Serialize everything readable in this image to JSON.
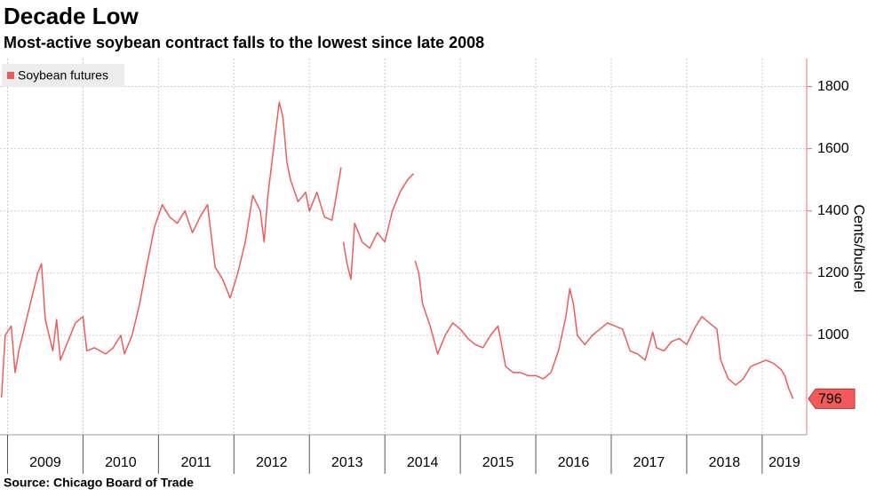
{
  "chart_data": {
    "type": "line",
    "title": "Decade Low",
    "subtitle": "Most-active soybean contract falls to the lowest since late 2008",
    "source": "Source: Chicago Board of Trade",
    "y_axis_label": "Cents/bushel",
    "legend_position": "top-left",
    "grid": true,
    "xlim": [
      2008.9,
      2019.59
    ],
    "xticks": [
      2009,
      2010,
      2011,
      2012,
      2013,
      2014,
      2015,
      2016,
      2017,
      2018,
      2019
    ],
    "ylim": [
      680,
      1890
    ],
    "yticks": [
      1000,
      1200,
      1400,
      1600,
      1800
    ],
    "x": [
      2008.92,
      2008.97,
      2009.05,
      2009.1,
      2009.15,
      2009.2,
      2009.3,
      2009.4,
      2009.45,
      2009.5,
      2009.55,
      2009.6,
      2009.65,
      2009.7,
      2009.8,
      2009.9,
      2010.0,
      2010.05,
      2010.15,
      2010.3,
      2010.4,
      2010.5,
      2010.55,
      2010.65,
      2010.75,
      2010.85,
      2010.95,
      2011.05,
      2011.15,
      2011.25,
      2011.35,
      2011.45,
      2011.55,
      2011.65,
      2011.75,
      2011.85,
      2011.95,
      2012.05,
      2012.15,
      2012.25,
      2012.35,
      2012.4,
      2012.45,
      2012.5,
      2012.55,
      2012.6,
      2012.65,
      2012.7,
      2012.75,
      2012.85,
      2012.95,
      2013.0,
      2013.1,
      2013.2,
      2013.3,
      2013.35,
      2013.42,
      null,
      2013.45,
      2013.5,
      2013.55,
      2013.6,
      2013.7,
      2013.8,
      2013.9,
      2014.0,
      2014.1,
      2014.2,
      2014.3,
      2014.38,
      null,
      2014.4,
      2014.45,
      2014.5,
      2014.6,
      2014.7,
      2014.8,
      2014.9,
      2015.0,
      2015.1,
      2015.2,
      2015.3,
      2015.4,
      2015.5,
      2015.6,
      2015.7,
      2015.8,
      2015.9,
      2016.0,
      2016.1,
      2016.2,
      2016.3,
      2016.4,
      2016.45,
      2016.5,
      2016.55,
      2016.65,
      2016.75,
      2016.85,
      2016.95,
      2017.05,
      2017.15,
      2017.25,
      2017.35,
      2017.45,
      2017.55,
      2017.6,
      2017.7,
      2017.8,
      2017.9,
      2018.0,
      2018.1,
      2018.2,
      2018.3,
      2018.4,
      2018.45,
      2018.55,
      2018.65,
      2018.75,
      2018.85,
      2018.95,
      2019.05,
      2019.15,
      2019.25,
      2019.3,
      2019.35,
      2019.41
    ],
    "series": [
      {
        "name": "Soybean futures",
        "color": "#f05a5a",
        "values": [
          800,
          1000,
          1030,
          880,
          950,
          1000,
          1100,
          1200,
          1230,
          1050,
          1000,
          950,
          1050,
          920,
          980,
          1040,
          1060,
          950,
          960,
          940,
          960,
          1000,
          940,
          1000,
          1100,
          1230,
          1350,
          1420,
          1380,
          1360,
          1400,
          1330,
          1380,
          1420,
          1220,
          1180,
          1120,
          1200,
          1300,
          1450,
          1400,
          1300,
          1450,
          1550,
          1650,
          1750,
          1700,
          1560,
          1500,
          1430,
          1460,
          1400,
          1460,
          1380,
          1370,
          1440,
          1540,
          null,
          1300,
          1230,
          1180,
          1360,
          1300,
          1280,
          1330,
          1300,
          1400,
          1460,
          1500,
          1520,
          null,
          1240,
          1200,
          1100,
          1030,
          940,
          1000,
          1040,
          1020,
          990,
          970,
          960,
          1000,
          1030,
          900,
          880,
          880,
          870,
          870,
          860,
          880,
          950,
          1060,
          1150,
          1100,
          1000,
          970,
          1000,
          1020,
          1040,
          1030,
          1020,
          950,
          940,
          920,
          1010,
          960,
          950,
          980,
          990,
          970,
          1020,
          1060,
          1040,
          1020,
          920,
          860,
          840,
          860,
          900,
          910,
          920,
          910,
          890,
          870,
          830,
          796
        ]
      }
    ]
  }
}
